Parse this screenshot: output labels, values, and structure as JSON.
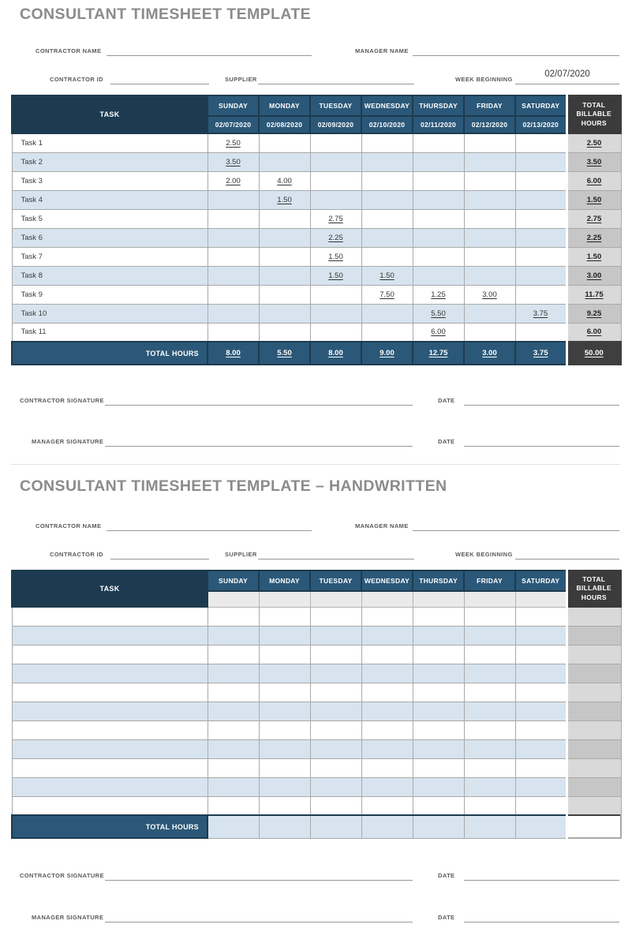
{
  "section1": {
    "title": "CONSULTANT TIMESHEET TEMPLATE",
    "week_beginning_value": "02/07/2020"
  },
  "section2": {
    "title": "CONSULTANT TIMESHEET TEMPLATE – HANDWRITTEN"
  },
  "form_labels": {
    "contractor_name": "CONTRACTOR NAME",
    "manager_name": "MANAGER NAME",
    "contractor_id": "CONTRACTOR ID",
    "supplier": "SUPPLIER",
    "week_beginning": "WEEK BEGINNING"
  },
  "signature_labels": {
    "contractor_signature": "CONTRACTOR SIGNATURE",
    "manager_signature": "MANAGER SIGNATURE",
    "date": "DATE"
  },
  "table": {
    "task_header": "TASK",
    "total_header": "TOTAL BILLABLE HOURS",
    "days": [
      "SUNDAY",
      "MONDAY",
      "TUESDAY",
      "WEDNESDAY",
      "THURSDAY",
      "FRIDAY",
      "SATURDAY"
    ],
    "total_hours_label": "TOTAL HOURS"
  },
  "timesheet1": {
    "dates": [
      "02/07/2020",
      "02/08/2020",
      "02/09/2020",
      "02/10/2020",
      "02/11/2020",
      "02/12/2020",
      "02/13/2020"
    ],
    "rows": [
      {
        "task": "Task 1",
        "values": [
          "2.50",
          "",
          "",
          "",
          "",
          "",
          ""
        ],
        "total": "2.50"
      },
      {
        "task": "Task 2",
        "values": [
          "3.50",
          "",
          "",
          "",
          "",
          "",
          ""
        ],
        "total": "3.50"
      },
      {
        "task": "Task 3",
        "values": [
          "2.00",
          "4.00",
          "",
          "",
          "",
          "",
          ""
        ],
        "total": "6.00"
      },
      {
        "task": "Task 4",
        "values": [
          "",
          "1.50",
          "",
          "",
          "",
          "",
          ""
        ],
        "total": "1.50"
      },
      {
        "task": "Task 5",
        "values": [
          "",
          "",
          "2.75",
          "",
          "",
          "",
          ""
        ],
        "total": "2.75"
      },
      {
        "task": "Task 6",
        "values": [
          "",
          "",
          "2.25",
          "",
          "",
          "",
          ""
        ],
        "total": "2.25"
      },
      {
        "task": "Task 7",
        "values": [
          "",
          "",
          "1.50",
          "",
          "",
          "",
          ""
        ],
        "total": "1.50"
      },
      {
        "task": "Task 8",
        "values": [
          "",
          "",
          "1.50",
          "1.50",
          "",
          "",
          ""
        ],
        "total": "3.00"
      },
      {
        "task": "Task 9",
        "values": [
          "",
          "",
          "",
          "7.50",
          "1.25",
          "3.00",
          ""
        ],
        "total": "11.75"
      },
      {
        "task": "Task 10",
        "values": [
          "",
          "",
          "",
          "",
          "5.50",
          "",
          "3.75"
        ],
        "total": "9.25"
      },
      {
        "task": "Task 11",
        "values": [
          "",
          "",
          "",
          "",
          "6.00",
          "",
          ""
        ],
        "total": "6.00"
      }
    ],
    "day_totals": [
      "8.00",
      "5.50",
      "8.00",
      "9.00",
      "12.75",
      "3.00",
      "3.75"
    ],
    "grand_total": "50.00"
  },
  "timesheet2": {
    "row_count": 11,
    "dates": [
      "",
      "",
      "",
      "",
      "",
      "",
      ""
    ],
    "day_totals": [
      "",
      "",
      "",
      "",
      "",
      "",
      ""
    ],
    "grand_total": ""
  },
  "colors": {
    "navy_dark": "#1d3b50",
    "navy_mid": "#2b5878",
    "header_gray": "#3b3b3b",
    "row_blue": "#d7e4ef",
    "total_cell_light": "#d9d9d9",
    "total_cell_dark": "#c6c6c6",
    "title_gray": "#8b8b8b"
  }
}
